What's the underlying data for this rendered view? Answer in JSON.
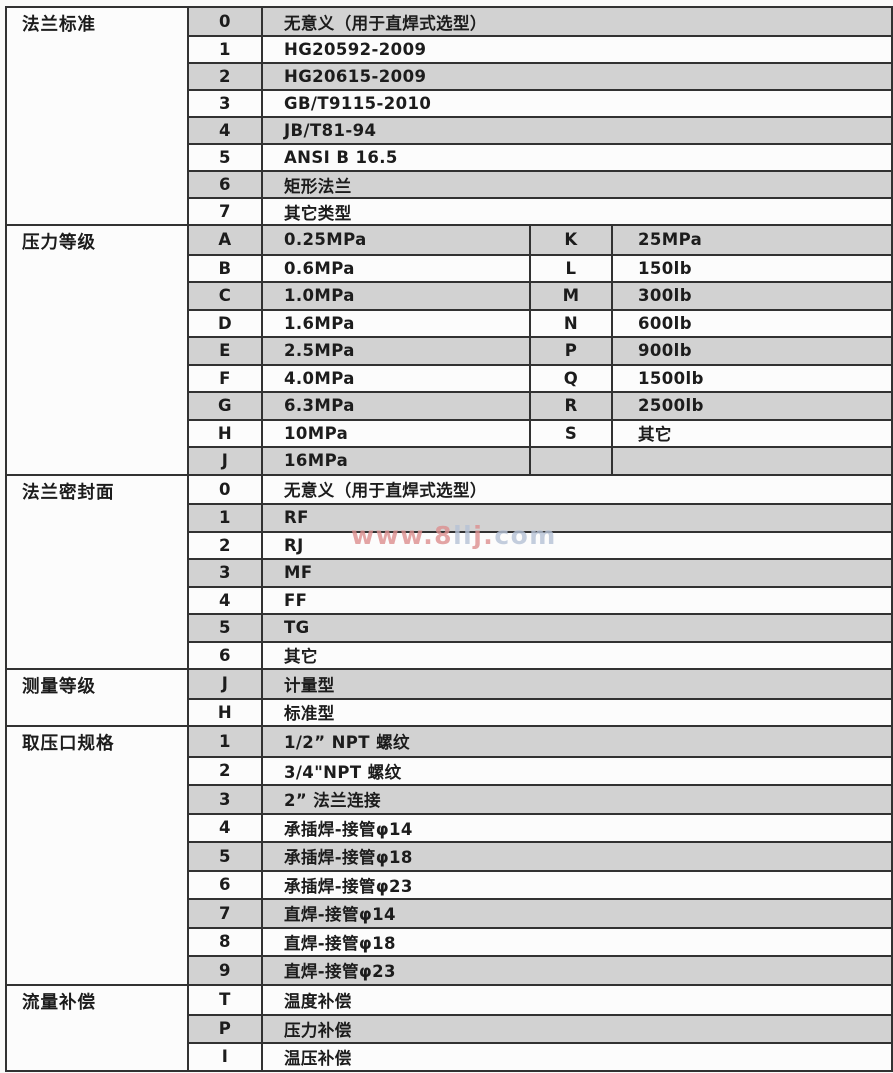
{
  "colors": {
    "row_gray": "#d2d2d2",
    "row_white": "#fcfcfc",
    "grid_line": "#323232",
    "watermark_red": "#dd8f8f",
    "watermark_blue": "#b6c2d6"
  },
  "table": {
    "sections": [
      {
        "key": "flange-standard",
        "category": "法兰标准",
        "rows": [
          {
            "code": "0",
            "desc": "无意义（用于直焊式选型）"
          },
          {
            "code": "1",
            "desc": "HG20592-2009"
          },
          {
            "code": "2",
            "desc": "HG20615-2009"
          },
          {
            "code": "3",
            "desc": "GB/T9115-2010"
          },
          {
            "code": "4",
            "desc": "JB/T81-94"
          },
          {
            "code": "5",
            "desc": "ANSI B 16.5"
          },
          {
            "code": "6",
            "desc": "矩形法兰"
          },
          {
            "code": "7",
            "desc": "其它类型"
          }
        ]
      },
      {
        "key": "pressure-grade",
        "category": "压力等级",
        "two_groups": true,
        "rows": [
          {
            "code": "A",
            "desc": "0.25MPa",
            "code2": "K",
            "desc2": "25MPa"
          },
          {
            "code": "B",
            "desc": "0.6MPa",
            "code2": "L",
            "desc2": "150lb"
          },
          {
            "code": "C",
            "desc": "1.0MPa",
            "code2": "M",
            "desc2": "300lb"
          },
          {
            "code": "D",
            "desc": "1.6MPa",
            "code2": "N",
            "desc2": "600lb"
          },
          {
            "code": "E",
            "desc": "2.5MPa",
            "code2": "P",
            "desc2": "900lb"
          },
          {
            "code": "F",
            "desc": "4.0MPa",
            "code2": "Q",
            "desc2": "1500lb"
          },
          {
            "code": "G",
            "desc": "6.3MPa",
            "code2": "R",
            "desc2": "2500lb"
          },
          {
            "code": "H",
            "desc": "10MPa",
            "code2": "S",
            "desc2": "其它"
          },
          {
            "code": "J",
            "desc": "16MPa",
            "code2": "",
            "desc2": ""
          }
        ]
      },
      {
        "key": "flange-sealing-face",
        "category": "法兰密封面",
        "rows": [
          {
            "code": "0",
            "desc": "无意义（用于直焊式选型）"
          },
          {
            "code": "1",
            "desc": "RF"
          },
          {
            "code": "2",
            "desc": "RJ"
          },
          {
            "code": "3",
            "desc": "MF"
          },
          {
            "code": "4",
            "desc": "FF"
          },
          {
            "code": "5",
            "desc": "TG"
          },
          {
            "code": "6",
            "desc": "其它"
          }
        ]
      },
      {
        "key": "measurement-grade",
        "category": "测量等级",
        "rows": [
          {
            "code": "J",
            "desc": "计量型"
          },
          {
            "code": "H",
            "desc": "标准型"
          }
        ]
      },
      {
        "key": "pressure-tap-spec",
        "category": "取压口规格",
        "rows": [
          {
            "code": "1",
            "desc": "1/2” NPT 螺纹"
          },
          {
            "code": "2",
            "desc": "3/4\"NPT 螺纹"
          },
          {
            "code": "3",
            "desc": "2” 法兰连接"
          },
          {
            "code": "4",
            "desc": "承插焊-接管φ14"
          },
          {
            "code": "5",
            "desc": "承插焊-接管φ18"
          },
          {
            "code": "6",
            "desc": "承插焊-接管φ23"
          },
          {
            "code": "7",
            "desc": "直焊-接管φ14"
          },
          {
            "code": "8",
            "desc": "直焊-接管φ18"
          },
          {
            "code": "9",
            "desc": "直焊-接管φ23"
          }
        ]
      },
      {
        "key": "flow-compensation",
        "category": "流量补偿",
        "rows": [
          {
            "code": "T",
            "desc": "温度补偿"
          },
          {
            "code": "P",
            "desc": "压力补偿"
          },
          {
            "code": "I",
            "desc": "温压补偿"
          }
        ]
      }
    ]
  },
  "watermark": {
    "segments": [
      {
        "text": "www.8",
        "color": "#dd8f8f"
      },
      {
        "text": "ll",
        "color": "#b6c2d6"
      },
      {
        "text": "j.",
        "color": "#dd8f8f"
      },
      {
        "text": "com",
        "color": "#b6c2d6"
      }
    ]
  }
}
